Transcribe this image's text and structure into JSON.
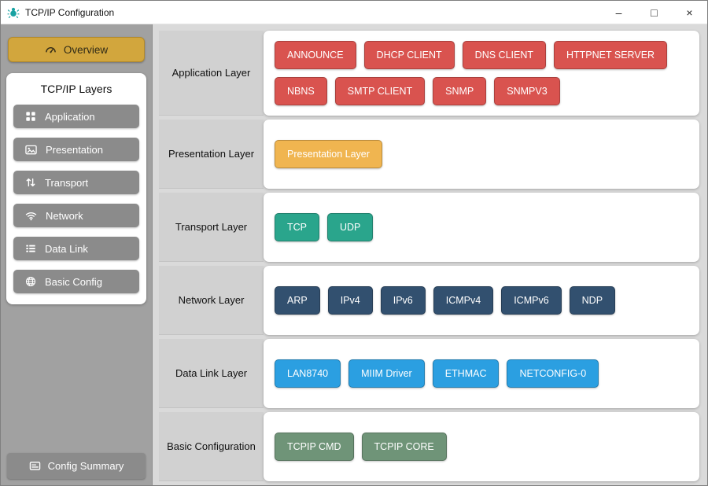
{
  "window": {
    "title": "TCP/IP Configuration",
    "controls": {
      "minimize": "–",
      "maximize": "□",
      "close": "×"
    }
  },
  "sidebar": {
    "overview_label": "Overview",
    "overview_icon": "gauge-icon",
    "layers_title": "TCP/IP Layers",
    "items": [
      {
        "label": "Application",
        "icon": "grid"
      },
      {
        "label": "Presentation",
        "icon": "image"
      },
      {
        "label": "Transport",
        "icon": "sort"
      },
      {
        "label": "Network",
        "icon": "wifi"
      },
      {
        "label": "Data Link",
        "icon": "list"
      },
      {
        "label": "Basic Config",
        "icon": "globe"
      }
    ],
    "summary_label": "Config Summary",
    "summary_icon": "card-icon"
  },
  "main": {
    "rows": [
      {
        "label": "Application Layer",
        "color": "#d9534f",
        "buttons": [
          "ANNOUNCE",
          "DHCP CLIENT",
          "DNS CLIENT",
          "HTTPNET SERVER",
          "NBNS",
          "SMTP CLIENT",
          "SNMP",
          "SNMPV3"
        ]
      },
      {
        "label": "Presentation Layer",
        "color": "#f0b550",
        "buttons": [
          "Presentation Layer"
        ]
      },
      {
        "label": "Transport Layer",
        "color": "#2aa58c",
        "buttons": [
          "TCP",
          "UDP"
        ]
      },
      {
        "label": "Network Layer",
        "color": "#32506f",
        "buttons": [
          "ARP",
          "IPv4",
          "IPv6",
          "ICMPv4",
          "ICMPv6",
          "NDP"
        ]
      },
      {
        "label": "Data Link Layer",
        "color": "#2b9fe1",
        "buttons": [
          "LAN8740",
          "MIIM Driver",
          "ETHMAC",
          "NETCONFIG-0"
        ]
      },
      {
        "label": "Basic Configuration",
        "color": "#6f9478",
        "buttons": [
          "TCPIP CMD",
          "TCPIP CORE"
        ]
      }
    ]
  },
  "colors": {
    "accent_gold": "#d2a63d",
    "sidebar_button_gray": "#8b8b8b",
    "app_icon_teal": "#17a2a2",
    "module_red": "#d9534f",
    "module_gold": "#f0b550",
    "module_teal": "#2aa58c",
    "module_navy": "#32506f",
    "module_blue": "#2b9fe1",
    "module_green": "#6f9478"
  }
}
